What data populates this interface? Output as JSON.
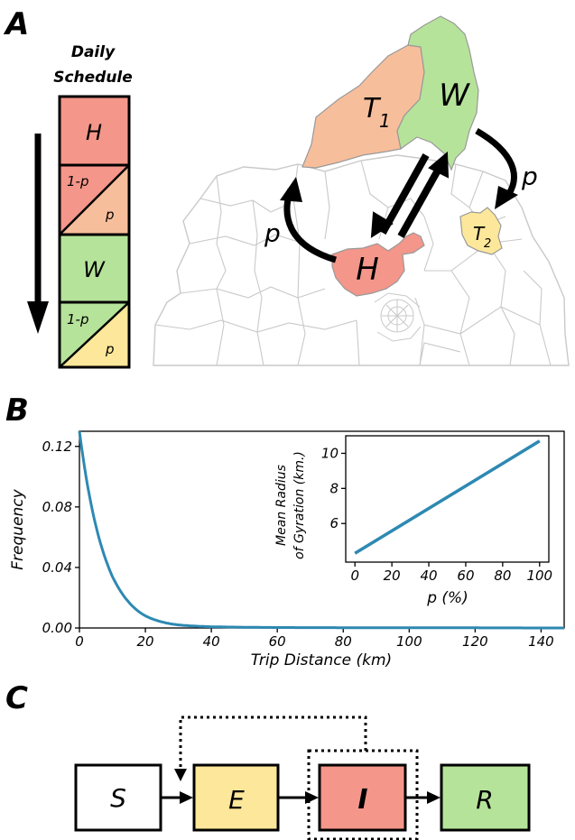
{
  "panels": {
    "a": "A",
    "b": "B",
    "c": "C"
  },
  "schedule": {
    "title_line1": "Daily",
    "title_line2": "Schedule",
    "home": "H",
    "work": "W",
    "one_minus_p": "1-p",
    "p": "p"
  },
  "map": {
    "home_label": "H",
    "work_label": "W",
    "trip1_main": "T",
    "trip1_sub": "1",
    "trip2_main": "T",
    "trip2_sub": "2",
    "p_left": "p",
    "p_right": "p"
  },
  "colors": {
    "home": "#f4968a",
    "trip1": "#f7be9b",
    "work": "#b6e39a",
    "trip2": "#fde79a",
    "line": "#2d89b2",
    "grid_stroke": "#c9c9c9"
  },
  "chart_data": [
    {
      "type": "line",
      "xlabel": "Trip Distance (km)",
      "ylabel": "Frequency",
      "xlim": [
        0,
        147
      ],
      "ylim": [
        0,
        0.13
      ],
      "xticks": [
        0,
        20,
        40,
        60,
        80,
        100,
        120,
        140
      ],
      "yticks": [
        0.0,
        0.04,
        0.08,
        0.12
      ],
      "ytick_labels": [
        "0.00",
        "0.04",
        "0.08",
        "0.12"
      ],
      "x": [
        0,
        2,
        4,
        6,
        8,
        10,
        12,
        15,
        20,
        25,
        30,
        40,
        60,
        80,
        100,
        120,
        147
      ],
      "y": [
        0.13,
        0.1,
        0.077,
        0.059,
        0.045,
        0.034,
        0.026,
        0.017,
        0.008,
        0.004,
        0.002,
        0.0008,
        0.0003,
        0.0002,
        0.0001,
        0.0001,
        0.0
      ]
    },
    {
      "type": "line",
      "xlabel": "p (%)",
      "ylabel_line1": "Mean Radius",
      "ylabel_line2": "of Gyration (km.)",
      "xlim": [
        -5,
        105
      ],
      "ylim": [
        3.8,
        11
      ],
      "xticks": [
        0,
        20,
        40,
        60,
        80,
        100
      ],
      "yticks": [
        6,
        8,
        10
      ],
      "x": [
        0,
        100
      ],
      "y": [
        4.3,
        10.7
      ]
    }
  ],
  "seir": {
    "s": "S",
    "e": "E",
    "i": "I",
    "r": "R"
  }
}
